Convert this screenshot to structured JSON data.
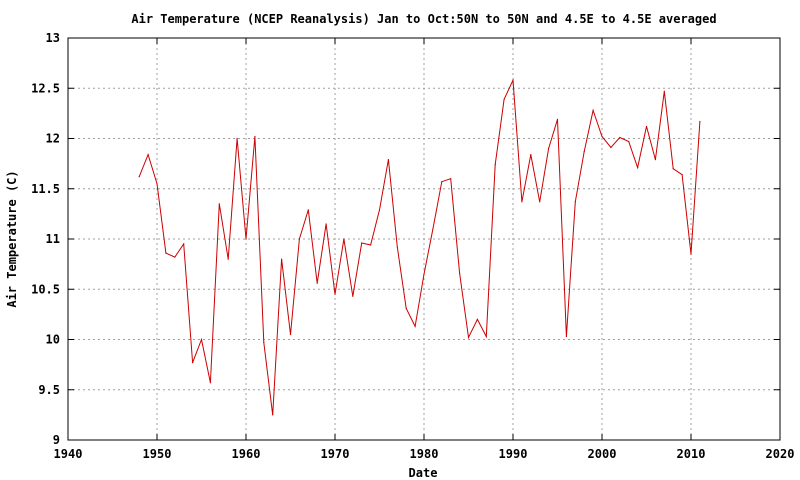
{
  "chart_data": {
    "type": "line",
    "title": "Air Temperature (NCEP Reanalysis) Jan to Oct:50N to 50N and 4.5E to 4.5E averaged",
    "xlabel": "Date",
    "ylabel": "Air Temperature (C)",
    "xlim": [
      1940,
      2020
    ],
    "ylim": [
      9,
      13
    ],
    "x_ticks": [
      1940,
      1950,
      1960,
      1970,
      1980,
      1990,
      2000,
      2010,
      2020
    ],
    "y_ticks": [
      9,
      9.5,
      10,
      10.5,
      11,
      11.5,
      12,
      12.5,
      13
    ],
    "x_tick_labels": [
      "1940",
      "1950",
      "1960",
      "1970",
      "1980",
      "1990",
      "2000",
      "2010",
      "2020"
    ],
    "y_tick_labels": [
      "9",
      "9.5",
      "10",
      "10.5",
      "11",
      "11.5",
      "12",
      "12.5",
      "13"
    ],
    "grid": true,
    "line_color": "#cc0000",
    "series": [
      {
        "x": [
          1948,
          1949,
          1950,
          1951,
          1952,
          1953,
          1954,
          1955,
          1956,
          1957,
          1958,
          1959,
          1960,
          1961,
          1962,
          1963,
          1964,
          1965,
          1966,
          1967,
          1968,
          1969,
          1970,
          1971,
          1972,
          1973,
          1974,
          1975,
          1976,
          1977,
          1978,
          1979,
          1980,
          1981,
          1982,
          1983,
          1984,
          1985,
          1986,
          1987,
          1988,
          1989,
          1990,
          1991,
          1992,
          1993,
          1994,
          1995,
          1996,
          1997,
          1998,
          1999,
          2000,
          2001,
          2002,
          2003,
          2004,
          2005,
          2006,
          2007,
          2008,
          2009,
          2010,
          2011
        ],
        "values": [
          11.62,
          11.84,
          11.55,
          10.86,
          10.82,
          10.95,
          9.77,
          10.0,
          9.57,
          11.35,
          10.8,
          12.0,
          11.0,
          12.02,
          9.97,
          9.25,
          10.8,
          10.05,
          11.0,
          11.29,
          10.56,
          11.15,
          10.45,
          11.0,
          10.43,
          10.96,
          10.94,
          11.29,
          11.79,
          10.92,
          10.31,
          10.13,
          10.65,
          11.1,
          11.57,
          11.6,
          10.66,
          10.02,
          10.2,
          10.03,
          11.74,
          12.39,
          12.58,
          11.37,
          11.84,
          11.37,
          11.9,
          12.19,
          10.03,
          11.37,
          11.87,
          12.28,
          12.02,
          11.91,
          12.01,
          11.97,
          11.71,
          12.12,
          11.79,
          12.47,
          11.7,
          11.64,
          10.85,
          12.17
        ]
      }
    ]
  }
}
